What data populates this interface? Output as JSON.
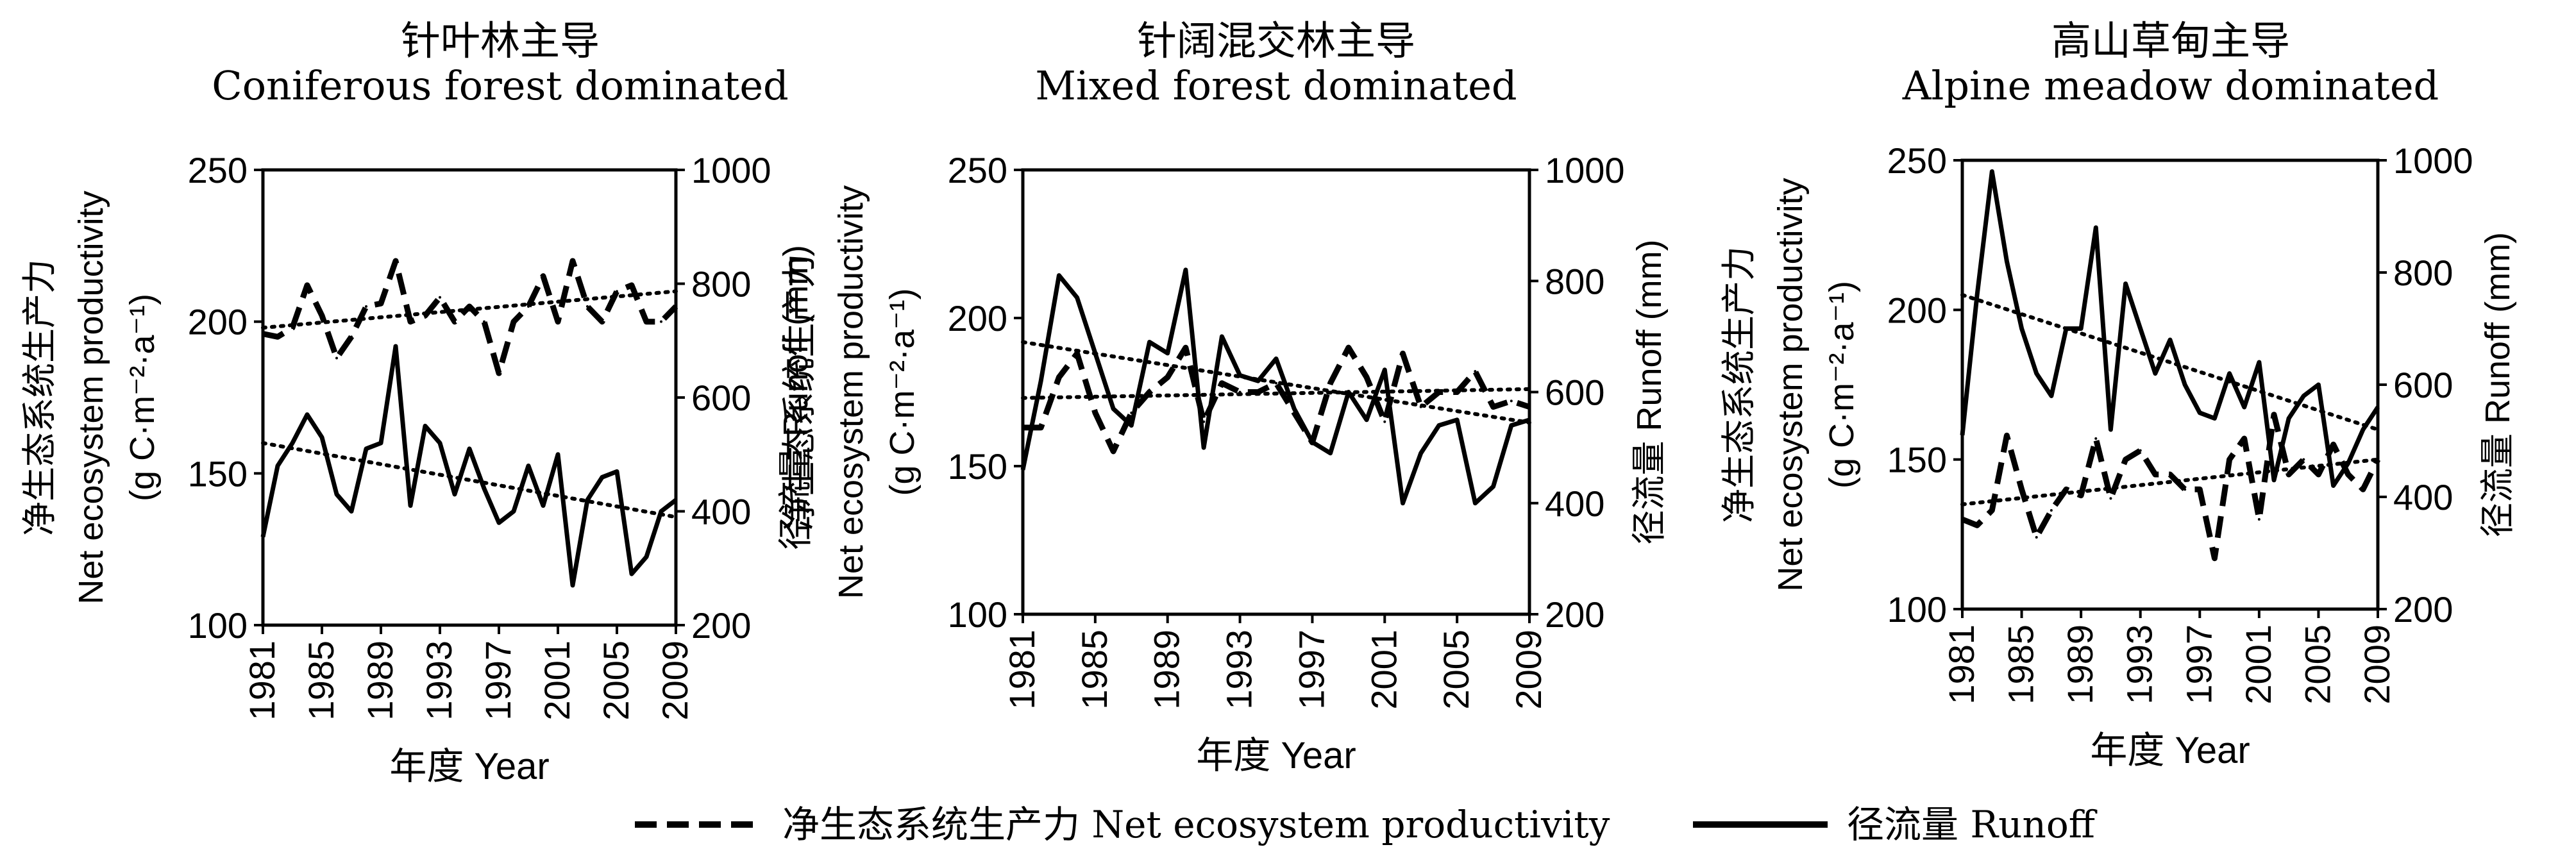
{
  "legend": {
    "npp": "净生态系统生产力 Net ecosystem productivity",
    "runoff": "径流量 Runoff"
  },
  "chart_data": [
    {
      "type": "line",
      "title_zh": "针叶林主导",
      "title_en": "Coniferous forest dominated",
      "ylabel_left": [
        "净生态系统生产力",
        "Net ecosystem productivity",
        "(g C·m⁻²·a⁻¹)"
      ],
      "ylabel_right": "径流量 Runoff (mm)",
      "xlabel": "年度 Year",
      "x_ticks": [
        "1981",
        "1985",
        "1989",
        "1993",
        "1997",
        "2001",
        "2005",
        "2009"
      ],
      "ylim_left": [
        100,
        250
      ],
      "ylim_right": [
        200,
        1000
      ],
      "yticks_left": [
        "100",
        "150",
        "200",
        "250"
      ],
      "yticks_right": [
        "200",
        "400",
        "600",
        "800",
        "1000"
      ],
      "x": [
        1981,
        1982,
        1983,
        1984,
        1985,
        1986,
        1987,
        1988,
        1989,
        1990,
        1991,
        1992,
        1993,
        1994,
        1995,
        1996,
        1997,
        1998,
        1999,
        2000,
        2001,
        2002,
        2003,
        2004,
        2005,
        2006,
        2007,
        2008,
        2009
      ],
      "series": [
        {
          "axis": "left",
          "style": "dashed",
          "values": [
            196,
            195,
            198,
            212,
            202,
            188,
            195,
            205,
            206,
            220,
            200,
            202,
            208,
            200,
            205,
            200,
            183,
            200,
            205,
            215,
            200,
            220,
            205,
            200,
            210,
            212,
            200,
            200,
            205
          ]
        },
        {
          "axis": "right",
          "style": "solid",
          "values": [
            355,
            480,
            520,
            570,
            530,
            430,
            400,
            510,
            520,
            690,
            410,
            550,
            520,
            430,
            510,
            440,
            380,
            400,
            480,
            410,
            500,
            270,
            420,
            460,
            470,
            290,
            320,
            400,
            420
          ]
        }
      ],
      "trends": [
        {
          "axis": "left",
          "start": 198,
          "end": 210
        },
        {
          "axis": "right",
          "start": 520,
          "end": 390
        }
      ]
    },
    {
      "type": "line",
      "title_zh": "针阔混交林主导",
      "title_en": "Mixed forest dominated",
      "ylabel_left": [
        "净生态系统生产力",
        "Net ecosystem productivity",
        "(g C·m⁻²·a⁻¹)"
      ],
      "ylabel_right": "径流量 Runoff (mm)",
      "xlabel": "年度 Year",
      "x_ticks": [
        "1981",
        "1985",
        "1989",
        "1993",
        "1997",
        "2001",
        "2005",
        "2009"
      ],
      "ylim_left": [
        100,
        250
      ],
      "ylim_right": [
        200,
        1000
      ],
      "yticks_left": [
        "100",
        "150",
        "200",
        "250"
      ],
      "yticks_right": [
        "200",
        "400",
        "600",
        "800",
        "1000"
      ],
      "x": [
        1981,
        1982,
        1983,
        1984,
        1985,
        1986,
        1987,
        1988,
        1989,
        1990,
        1991,
        1992,
        1993,
        1994,
        1995,
        1996,
        1997,
        1998,
        1999,
        2000,
        2001,
        2002,
        2003,
        2004,
        2005,
        2006,
        2007,
        2008,
        2009
      ],
      "series": [
        {
          "axis": "left",
          "style": "dashed",
          "values": [
            163,
            163,
            180,
            188,
            168,
            155,
            168,
            175,
            180,
            190,
            165,
            178,
            175,
            175,
            178,
            168,
            158,
            178,
            190,
            180,
            165,
            188,
            170,
            175,
            175,
            182,
            170,
            172,
            170
          ]
        },
        {
          "axis": "right",
          "style": "solid",
          "values": [
            460,
            620,
            810,
            770,
            670,
            570,
            540,
            690,
            670,
            820,
            500,
            700,
            630,
            620,
            660,
            570,
            510,
            490,
            600,
            550,
            640,
            400,
            490,
            540,
            550,
            400,
            430,
            540,
            550
          ]
        }
      ],
      "trends": [
        {
          "axis": "left",
          "start": 173,
          "end": 176
        },
        {
          "axis": "right",
          "start": 690,
          "end": 545
        }
      ]
    },
    {
      "type": "line",
      "title_zh": "高山草甸主导",
      "title_en": "Alpine meadow dominated",
      "ylabel_left": [
        "净生态系统生产力",
        "Net ecosystem productivity",
        "(g C·m⁻²·a⁻¹)"
      ],
      "ylabel_right": "径流量 Runoff (mm)",
      "xlabel": "年度 Year",
      "x_ticks": [
        "1981",
        "1985",
        "1989",
        "1993",
        "1997",
        "2001",
        "2005",
        "2009"
      ],
      "ylim_left": [
        100,
        250
      ],
      "ylim_right": [
        200,
        1000
      ],
      "yticks_left": [
        "100",
        "150",
        "200",
        "250"
      ],
      "yticks_right": [
        "200",
        "400",
        "600",
        "800",
        "1000"
      ],
      "x": [
        1981,
        1982,
        1983,
        1984,
        1985,
        1986,
        1987,
        1988,
        1989,
        1990,
        1991,
        1992,
        1993,
        1994,
        1995,
        1996,
        1997,
        1998,
        1999,
        2000,
        2001,
        2002,
        2003,
        2004,
        2005,
        2006,
        2007,
        2008,
        2009
      ],
      "series": [
        {
          "axis": "left",
          "style": "dashed",
          "values": [
            130,
            128,
            133,
            158,
            140,
            124,
            133,
            140,
            138,
            157,
            137,
            150,
            153,
            145,
            145,
            140,
            140,
            117,
            150,
            157,
            130,
            165,
            145,
            150,
            145,
            155,
            145,
            140,
            150
          ]
        },
        {
          "axis": "right",
          "style": "solid",
          "values": [
            510,
            760,
            980,
            820,
            700,
            620,
            580,
            700,
            700,
            880,
            520,
            780,
            700,
            620,
            680,
            600,
            550,
            540,
            620,
            560,
            640,
            430,
            540,
            580,
            600,
            420,
            460,
            520,
            560
          ]
        }
      ],
      "trends": [
        {
          "axis": "left",
          "start": 135,
          "end": 150
        },
        {
          "axis": "right",
          "start": 760,
          "end": 520
        }
      ]
    }
  ]
}
